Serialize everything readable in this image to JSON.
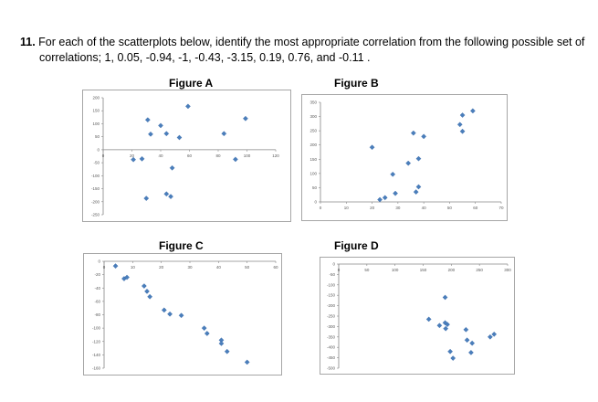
{
  "question": {
    "number": "11.",
    "text_line1": "For each of the scatterplots below, identify the most appropriate correlation from the following possible set of",
    "text_line2": "correlations;   1, 0.05,  -0.94,  -1,  -0.43,  -3.15,  0.19,  0.76, and -0.11  ."
  },
  "marker_color": "#4A7EBB",
  "chart_data": [
    {
      "type": "scatter",
      "title": "Figure A",
      "xlim": [
        0,
        120
      ],
      "ylim": [
        -250,
        200
      ],
      "xticks": [
        0,
        20,
        40,
        60,
        80,
        100,
        120
      ],
      "yticks": [
        200,
        150,
        100,
        50,
        0,
        -50,
        -100,
        -150,
        -200,
        -250
      ],
      "x": [
        21,
        27,
        30,
        31,
        33,
        40,
        44,
        44,
        47,
        48,
        53,
        59,
        84,
        92,
        99
      ],
      "y": [
        -38,
        -35,
        -187,
        115,
        60,
        93,
        62,
        -170,
        -180,
        -70,
        47,
        167,
        62,
        -37,
        120
      ],
      "xlabel": "",
      "ylabel": "",
      "grid": false,
      "legend": false
    },
    {
      "type": "scatter",
      "title": "Figure B",
      "xlim": [
        0,
        70
      ],
      "ylim": [
        0,
        350
      ],
      "xticks": [
        0,
        10,
        20,
        30,
        40,
        50,
        60,
        70
      ],
      "yticks": [
        350,
        300,
        250,
        200,
        150,
        100,
        50,
        0
      ],
      "x": [
        20,
        23,
        25,
        28,
        29,
        34,
        36,
        37,
        38,
        38,
        40,
        54,
        55,
        55,
        59
      ],
      "y": [
        192,
        8,
        15,
        97,
        30,
        136,
        242,
        35,
        152,
        53,
        230,
        272,
        305,
        248,
        320
      ],
      "xlabel": "",
      "ylabel": "",
      "grid": false,
      "legend": false
    },
    {
      "type": "scatter",
      "title": "Figure C",
      "xlim": [
        0,
        60
      ],
      "ylim": [
        -160,
        0
      ],
      "xticks": [
        0,
        10,
        20,
        30,
        40,
        50,
        60
      ],
      "yticks": [
        0,
        -20,
        -40,
        -60,
        -80,
        -100,
        -120,
        -140,
        -160
      ],
      "x": [
        4,
        7,
        8,
        14,
        15,
        16,
        21,
        23,
        27,
        35,
        36,
        41,
        41,
        43,
        50
      ],
      "y": [
        -7,
        -26,
        -24,
        -37,
        -45,
        -53,
        -73,
        -79,
        -81,
        -100,
        -108,
        -118,
        -123,
        -135,
        -151
      ],
      "xlabel": "",
      "ylabel": "",
      "grid": false,
      "legend": false
    },
    {
      "type": "scatter",
      "title": "Figure D",
      "xlim": [
        0,
        300
      ],
      "ylim": [
        -500,
        0
      ],
      "xticks": [
        0,
        50,
        100,
        150,
        200,
        250,
        300
      ],
      "yticks": [
        0,
        -50,
        -100,
        -150,
        -200,
        -250,
        -300,
        -350,
        -400,
        -450,
        -500
      ],
      "x": [
        160,
        179,
        189,
        189,
        190,
        193,
        198,
        203,
        226,
        228,
        235,
        237,
        269,
        276
      ],
      "y": [
        -265,
        -295,
        -160,
        -282,
        -310,
        -290,
        -420,
        -452,
        -315,
        -365,
        -425,
        -380,
        -350,
        -337
      ],
      "xlabel": "",
      "ylabel": "",
      "grid": false,
      "legend": false
    }
  ]
}
